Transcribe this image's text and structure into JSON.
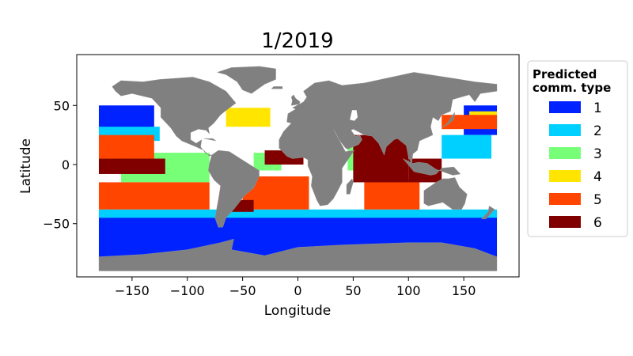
{
  "chart_data": {
    "type": "scatter",
    "title": "1/2019",
    "xlabel": "Longitude",
    "ylabel": "Latitude",
    "xlim": [
      -200,
      200
    ],
    "ylim": [
      -95,
      93
    ],
    "xticks": [
      -150,
      -100,
      -50,
      0,
      50,
      100,
      150
    ],
    "yticks": [
      -50,
      0,
      50
    ],
    "xtick_labels": [
      "−150",
      "−100",
      "−50",
      "0",
      "50",
      "100",
      "150"
    ],
    "ytick_labels": [
      "−50",
      "0",
      "50"
    ],
    "grid": false,
    "legend": {
      "title": "Predicted\ncomm. type",
      "title_lines": [
        "Predicted",
        "comm. type"
      ],
      "placement": "outside-right-top",
      "entries": [
        {
          "label": "1",
          "color": "#0022ff"
        },
        {
          "label": "2",
          "color": "#00d0ff"
        },
        {
          "label": "3",
          "color": "#78ff78"
        },
        {
          "label": "4",
          "color": "#ffe500"
        },
        {
          "label": "5",
          "color": "#ff4500"
        },
        {
          "label": "6",
          "color": "#800000"
        }
      ]
    },
    "land_color": "#808080",
    "ocean_regions": [
      {
        "class": "1",
        "lon": [
          -180,
          180
        ],
        "lat": [
          -80,
          -40
        ]
      },
      {
        "class": "1",
        "lon": [
          -180,
          -130
        ],
        "lat": [
          30,
          50
        ]
      },
      {
        "class": "1",
        "lon": [
          150,
          180
        ],
        "lat": [
          25,
          50
        ]
      },
      {
        "class": "2",
        "lon": [
          -180,
          -125
        ],
        "lat": [
          20,
          32
        ]
      },
      {
        "class": "2",
        "lon": [
          -180,
          180
        ],
        "lat": [
          -45,
          -38
        ]
      },
      {
        "class": "2",
        "lon": [
          130,
          175
        ],
        "lat": [
          5,
          25
        ]
      },
      {
        "class": "3",
        "lon": [
          -160,
          -80
        ],
        "lat": [
          -15,
          10
        ]
      },
      {
        "class": "3",
        "lon": [
          -40,
          -15
        ],
        "lat": [
          -5,
          10
        ]
      },
      {
        "class": "3",
        "lon": [
          45,
          60
        ],
        "lat": [
          -5,
          15
        ]
      },
      {
        "class": "4",
        "lon": [
          -65,
          -25
        ],
        "lat": [
          32,
          48
        ]
      },
      {
        "class": "4",
        "lon": [
          155,
          180
        ],
        "lat": [
          35,
          45
        ]
      },
      {
        "class": "5",
        "lon": [
          -180,
          -80
        ],
        "lat": [
          -38,
          -15
        ]
      },
      {
        "class": "5",
        "lon": [
          -50,
          10
        ],
        "lat": [
          -38,
          -10
        ]
      },
      {
        "class": "5",
        "lon": [
          60,
          110
        ],
        "lat": [
          -38,
          -12
        ]
      },
      {
        "class": "5",
        "lon": [
          -180,
          -130
        ],
        "lat": [
          5,
          25
        ]
      },
      {
        "class": "5",
        "lon": [
          130,
          180
        ],
        "lat": [
          30,
          42
        ]
      },
      {
        "class": "6",
        "lon": [
          -180,
          -120
        ],
        "lat": [
          -8,
          5
        ]
      },
      {
        "class": "6",
        "lon": [
          -30,
          5
        ],
        "lat": [
          0,
          12
        ]
      },
      {
        "class": "6",
        "lon": [
          50,
          100
        ],
        "lat": [
          -15,
          25
        ]
      },
      {
        "class": "6",
        "lon": [
          100,
          130
        ],
        "lat": [
          -15,
          5
        ]
      },
      {
        "class": "6",
        "lon": [
          -60,
          -40
        ],
        "lat": [
          -40,
          -30
        ]
      }
    ]
  }
}
